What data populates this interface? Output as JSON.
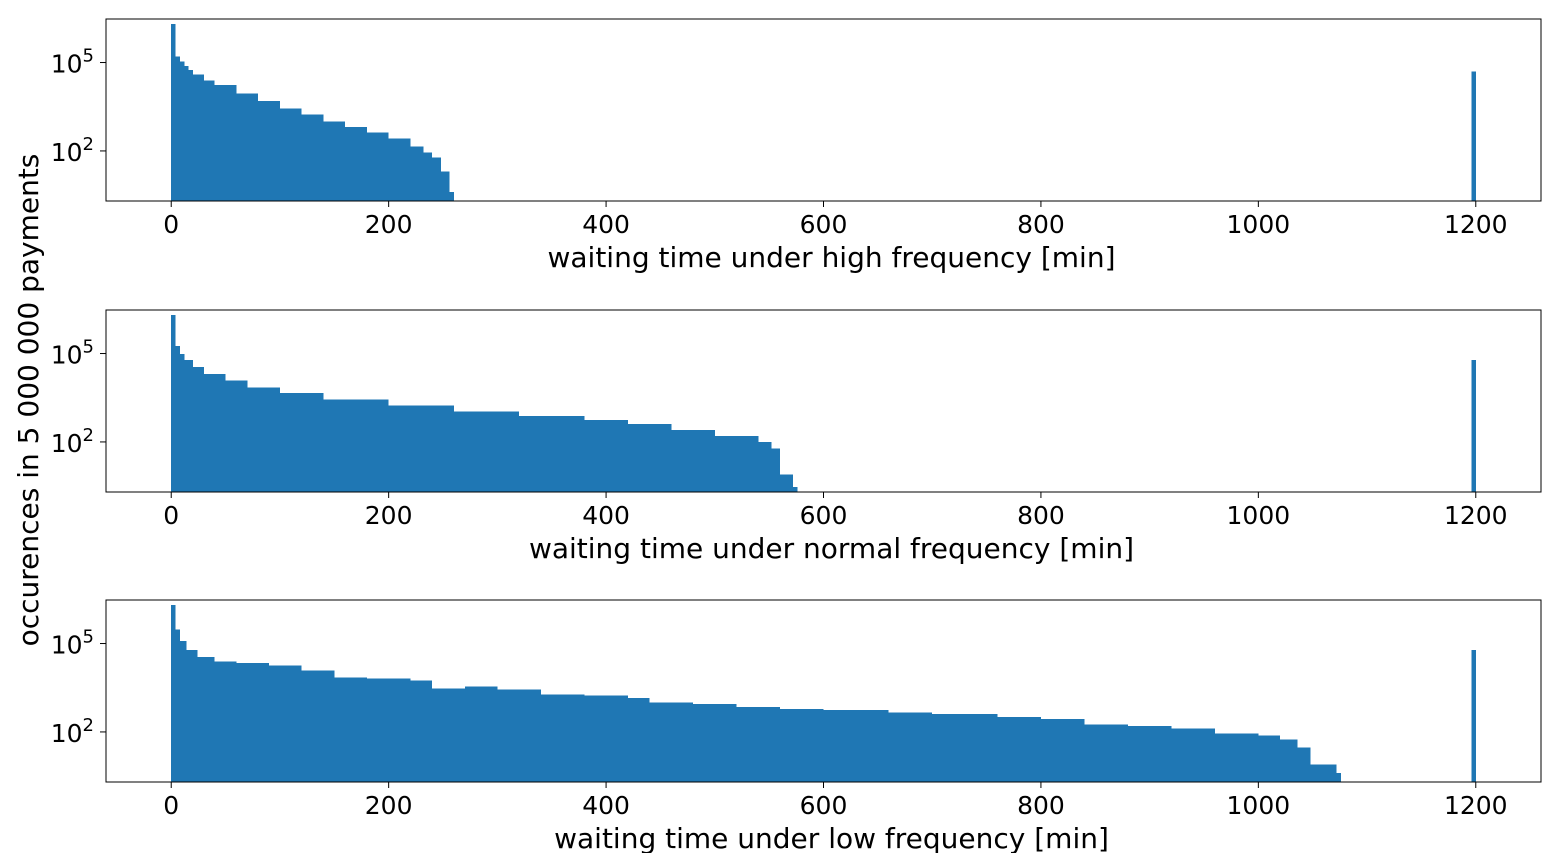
{
  "figure": {
    "ylabel": "occurences in 5 000 000 payments",
    "bar_color": "#1f77b4"
  },
  "chart_data": [
    {
      "type": "bar",
      "scale": "log",
      "xlabel": "waiting time under high frequency [min]",
      "xlim": [
        -60,
        1260
      ],
      "ylim": [
        2,
        3000000
      ],
      "xticks": [
        0,
        200,
        400,
        600,
        800,
        1000,
        1200
      ],
      "yticks": [
        {
          "value": 100000,
          "base": "10",
          "exp": "5"
        },
        {
          "value": 100,
          "base": "10",
          "exp": "2"
        }
      ],
      "bin_width": 4,
      "bins": [
        {
          "x": 0,
          "y": 2000000
        },
        {
          "x": 4,
          "y": 160000
        },
        {
          "x": 8,
          "y": 110000
        },
        {
          "x": 12,
          "y": 75000
        },
        {
          "x": 16,
          "y": 55000
        },
        {
          "x": 20,
          "y": 40000
        },
        {
          "x": 30,
          "y": 25000
        },
        {
          "x": 40,
          "y": 17000
        },
        {
          "x": 60,
          "y": 9000
        },
        {
          "x": 80,
          "y": 5000
        },
        {
          "x": 100,
          "y": 2800
        },
        {
          "x": 120,
          "y": 1700
        },
        {
          "x": 140,
          "y": 1000
        },
        {
          "x": 160,
          "y": 650
        },
        {
          "x": 180,
          "y": 420
        },
        {
          "x": 200,
          "y": 260
        },
        {
          "x": 220,
          "y": 140
        },
        {
          "x": 232,
          "y": 90
        },
        {
          "x": 240,
          "y": 60
        },
        {
          "x": 248,
          "y": 20
        },
        {
          "x": 256,
          "y": 4
        }
      ],
      "outlier": {
        "x": 1196,
        "y": 50000
      }
    },
    {
      "type": "bar",
      "scale": "log",
      "xlabel": "waiting time under normal frequency [min]",
      "xlim": [
        -60,
        1260
      ],
      "ylim": [
        2,
        3000000
      ],
      "xticks": [
        0,
        200,
        400,
        600,
        800,
        1000,
        1200
      ],
      "yticks": [
        {
          "value": 100000,
          "base": "10",
          "exp": "5"
        },
        {
          "value": 100,
          "base": "10",
          "exp": "2"
        }
      ],
      "bin_width": 4,
      "bins": [
        {
          "x": 0,
          "y": 2000000
        },
        {
          "x": 4,
          "y": 180000
        },
        {
          "x": 8,
          "y": 95000
        },
        {
          "x": 12,
          "y": 60000
        },
        {
          "x": 20,
          "y": 35000
        },
        {
          "x": 30,
          "y": 20000
        },
        {
          "x": 50,
          "y": 12000
        },
        {
          "x": 70,
          "y": 7000
        },
        {
          "x": 100,
          "y": 4500
        },
        {
          "x": 140,
          "y": 2800
        },
        {
          "x": 200,
          "y": 1700
        },
        {
          "x": 260,
          "y": 1100
        },
        {
          "x": 320,
          "y": 750
        },
        {
          "x": 380,
          "y": 550
        },
        {
          "x": 420,
          "y": 400
        },
        {
          "x": 460,
          "y": 250
        },
        {
          "x": 500,
          "y": 160
        },
        {
          "x": 540,
          "y": 100
        },
        {
          "x": 552,
          "y": 60
        },
        {
          "x": 560,
          "y": 8
        },
        {
          "x": 572,
          "y": 3
        }
      ],
      "outlier": {
        "x": 1196,
        "y": 60000
      }
    },
    {
      "type": "bar",
      "scale": "log",
      "xlabel": "waiting time under low frequency [min]",
      "xlim": [
        -60,
        1260
      ],
      "ylim": [
        2,
        3000000
      ],
      "xticks": [
        0,
        200,
        400,
        600,
        800,
        1000,
        1200
      ],
      "yticks": [
        {
          "value": 100000,
          "base": "10",
          "exp": "5"
        },
        {
          "value": 100,
          "base": "10",
          "exp": "2"
        }
      ],
      "bin_width": 4,
      "bins": [
        {
          "x": 0,
          "y": 2000000
        },
        {
          "x": 4,
          "y": 300000
        },
        {
          "x": 8,
          "y": 120000
        },
        {
          "x": 14,
          "y": 60000
        },
        {
          "x": 24,
          "y": 35000
        },
        {
          "x": 40,
          "y": 25000
        },
        {
          "x": 60,
          "y": 22000
        },
        {
          "x": 90,
          "y": 18000
        },
        {
          "x": 120,
          "y": 12000
        },
        {
          "x": 150,
          "y": 7000
        },
        {
          "x": 180,
          "y": 6500
        },
        {
          "x": 220,
          "y": 5500
        },
        {
          "x": 240,
          "y": 3000
        },
        {
          "x": 270,
          "y": 3500
        },
        {
          "x": 300,
          "y": 2800
        },
        {
          "x": 340,
          "y": 1900
        },
        {
          "x": 380,
          "y": 1700
        },
        {
          "x": 420,
          "y": 1400
        },
        {
          "x": 440,
          "y": 1000
        },
        {
          "x": 480,
          "y": 900
        },
        {
          "x": 520,
          "y": 700
        },
        {
          "x": 560,
          "y": 600
        },
        {
          "x": 600,
          "y": 550
        },
        {
          "x": 660,
          "y": 450
        },
        {
          "x": 700,
          "y": 400
        },
        {
          "x": 760,
          "y": 320
        },
        {
          "x": 800,
          "y": 280
        },
        {
          "x": 840,
          "y": 180
        },
        {
          "x": 880,
          "y": 160
        },
        {
          "x": 920,
          "y": 130
        },
        {
          "x": 960,
          "y": 90
        },
        {
          "x": 1000,
          "y": 75
        },
        {
          "x": 1020,
          "y": 55
        },
        {
          "x": 1036,
          "y": 30
        },
        {
          "x": 1048,
          "y": 8
        },
        {
          "x": 1060,
          "y": 8
        },
        {
          "x": 1072,
          "y": 4
        }
      ],
      "outlier": {
        "x": 1196,
        "y": 60000
      }
    }
  ]
}
